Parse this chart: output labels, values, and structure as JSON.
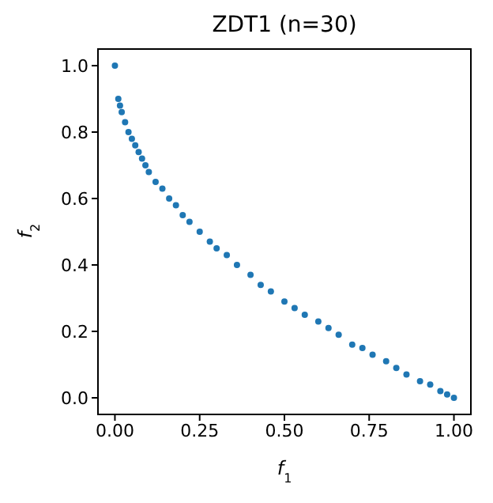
{
  "chart_data": {
    "type": "scatter",
    "title": "ZDT1 (n=30)",
    "xlabel": "f$_{1}$",
    "ylabel": "f$_{2}$",
    "xlim": [
      -0.05,
      1.05
    ],
    "ylim": [
      -0.05,
      1.05
    ],
    "xticks": [
      {
        "value": 0,
        "label": "0.00"
      },
      {
        "value": 0.25,
        "label": "0.25"
      },
      {
        "value": 0.5,
        "label": "0.50"
      },
      {
        "value": 0.75,
        "label": "0.75"
      },
      {
        "value": 1,
        "label": "1.00"
      }
    ],
    "yticks": [
      {
        "value": 0,
        "label": "0.0"
      },
      {
        "value": 0.2,
        "label": "0.2"
      },
      {
        "value": 0.4,
        "label": "0.4"
      },
      {
        "value": 0.6,
        "label": "0.6"
      },
      {
        "value": 0.8,
        "label": "0.8"
      },
      {
        "value": 1,
        "label": "1.0"
      }
    ],
    "marker": "circle",
    "grid": false,
    "series": [
      {
        "color": "#1f77b4",
        "x": [
          0,
          0.01,
          0.015,
          0.02,
          0.03,
          0.04,
          0.05,
          0.06,
          0.07,
          0.08,
          0.09,
          0.1,
          0.12,
          0.14,
          0.16,
          0.18,
          0.2,
          0.22,
          0.25,
          0.28,
          0.3,
          0.33,
          0.36,
          0.4,
          0.43,
          0.46,
          0.5,
          0.53,
          0.56,
          0.6,
          0.63,
          0.66,
          0.7,
          0.73,
          0.76,
          0.8,
          0.83,
          0.86,
          0.9,
          0.93,
          0.96,
          0.98,
          1.0
        ],
        "values": [
          1,
          0.9,
          0.88,
          0.86,
          0.83,
          0.8,
          0.78,
          0.76,
          0.74,
          0.72,
          0.7,
          0.68,
          0.65,
          0.63,
          0.6,
          0.58,
          0.55,
          0.53,
          0.5,
          0.47,
          0.45,
          0.43,
          0.4,
          0.37,
          0.34,
          0.32,
          0.29,
          0.27,
          0.25,
          0.23,
          0.21,
          0.19,
          0.16,
          0.15,
          0.13,
          0.11,
          0.09,
          0.07,
          0.05,
          0.04,
          0.02,
          0.01,
          0
        ]
      }
    ]
  }
}
